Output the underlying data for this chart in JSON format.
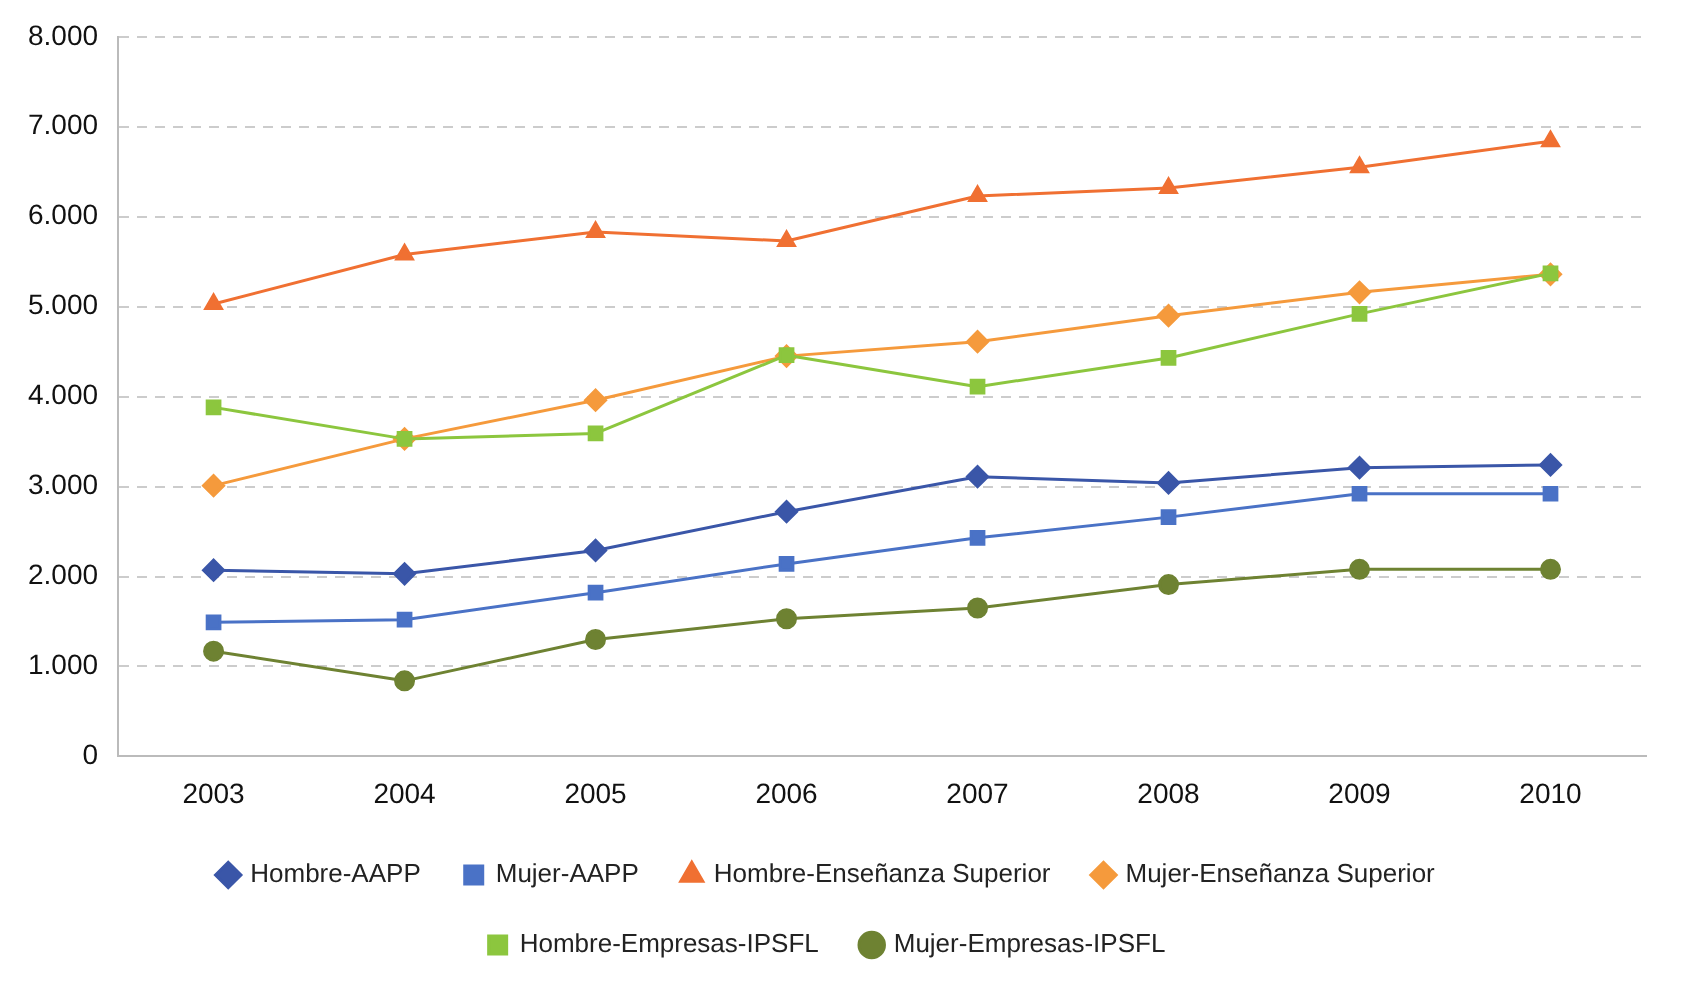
{
  "chart_data": {
    "type": "line",
    "categories": [
      "2003",
      "2004",
      "2005",
      "2006",
      "2007",
      "2008",
      "2009",
      "2010"
    ],
    "series": [
      {
        "name": "Hombre-AAPP",
        "color": "#3a56a8",
        "marker": "diamond",
        "values": [
          2070,
          2030,
          2290,
          2720,
          3110,
          3040,
          3210,
          3240
        ]
      },
      {
        "name": "Mujer-AAPP",
        "color": "#4a72c6",
        "marker": "square",
        "values": [
          1490,
          1520,
          1820,
          2140,
          2430,
          2660,
          2920,
          2920
        ]
      },
      {
        "name": "Hombre-Enseñanza Superior",
        "color": "#f07032",
        "marker": "triangle",
        "values": [
          5030,
          5580,
          5830,
          5730,
          6230,
          6320,
          6550,
          6840
        ]
      },
      {
        "name": "Mujer-Enseñanza Superior",
        "color": "#f59a3c",
        "marker": "diamond",
        "values": [
          3010,
          3530,
          3960,
          4450,
          4610,
          4900,
          5160,
          5360
        ]
      },
      {
        "name": "Hombre-Empresas-IPSFL",
        "color": "#8cc63e",
        "marker": "square",
        "values": [
          3880,
          3530,
          3590,
          4460,
          4110,
          4430,
          4920,
          5370
        ]
      },
      {
        "name": "Mujer-Empresas-IPSFL",
        "color": "#6e8232",
        "marker": "circle",
        "values": [
          1170,
          840,
          1300,
          1530,
          1650,
          1910,
          2080,
          2080
        ]
      }
    ],
    "ylim": [
      0,
      8000
    ],
    "yticks": [
      0,
      {
        "value": 1000,
        "label": "1.000"
      },
      {
        "value": 2000,
        "label": "2.000"
      },
      {
        "value": 3000,
        "label": "3.000"
      },
      {
        "value": 4000,
        "label": "4.000"
      },
      {
        "value": 5000,
        "label": "5.000"
      },
      {
        "value": 6000,
        "label": "6.000"
      },
      {
        "value": 7000,
        "label": "7.000"
      },
      {
        "value": 8000,
        "label": "8.000"
      }
    ],
    "grid": "y",
    "legend": "bottom",
    "line_style": "solid"
  }
}
